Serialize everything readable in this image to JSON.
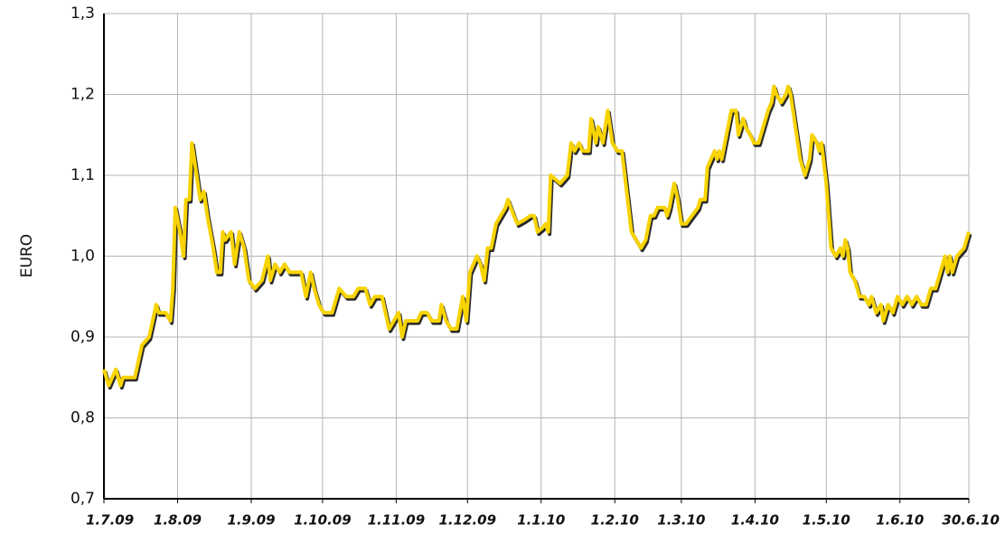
{
  "chart_data": {
    "type": "line",
    "y_label": "EURO",
    "x": [
      0,
      2,
      5,
      7,
      8,
      13,
      16,
      19,
      22,
      23,
      26,
      28,
      29,
      30,
      32,
      33.5,
      34.5,
      36,
      37,
      39,
      40.5,
      42,
      43.5,
      46,
      47.5,
      49,
      50,
      51,
      53.5,
      55,
      57,
      59,
      61,
      63.5,
      66.5,
      69,
      70,
      72,
      74,
      76,
      78,
      83,
      85,
      87,
      88.5,
      90.5,
      92.5,
      96,
      99,
      102,
      105,
      107,
      110,
      112,
      114,
      117,
      120,
      122,
      124,
      125.5,
      127,
      132,
      133.5,
      136,
      138,
      141,
      142,
      144,
      146,
      148.5,
      151,
      152.5,
      154,
      157,
      158.5,
      160,
      161.5,
      163,
      165,
      167,
      169,
      170,
      172.5,
      174,
      177,
      179.5,
      181,
      182.5,
      184.5,
      186,
      187,
      188,
      192,
      195,
      196.6,
      198,
      200,
      201.5,
      204,
      205,
      207,
      208,
      210,
      212,
      214,
      216,
      218,
      220,
      222,
      224,
      226,
      228,
      230,
      231.5,
      233,
      236,
      237,
      238,
      240,
      241.5,
      243,
      245,
      247.5,
      250,
      251,
      253,
      254,
      257,
      258,
      259,
      260,
      262,
      264,
      266,
      267,
      269,
      270,
      272,
      273.5,
      275.5,
      277.5,
      279.5,
      281,
      282,
      283,
      285,
      287,
      288,
      289,
      291,
      293,
      295,
      297,
      298,
      300,
      301,
      302,
      304,
      305,
      306,
      308,
      310,
      311,
      312,
      313,
      314,
      316,
      318,
      320,
      322,
      323,
      325,
      327,
      328,
      330,
      332,
      334,
      336,
      338,
      340,
      342,
      344,
      346,
      348,
      350,
      352,
      354,
      355,
      356,
      357,
      359,
      362,
      364
    ],
    "series": [
      {
        "name": "EURO",
        "color": "#f7d300",
        "values": [
          0.86,
          0.84,
          0.86,
          0.84,
          0.85,
          0.85,
          0.89,
          0.9,
          0.94,
          0.93,
          0.93,
          0.92,
          0.96,
          1.06,
          1.03,
          1.0,
          1.07,
          1.07,
          1.14,
          1.1,
          1.07,
          1.08,
          1.05,
          1.01,
          0.98,
          0.98,
          1.03,
          1.02,
          1.03,
          0.99,
          1.03,
          1.01,
          0.97,
          0.96,
          0.97,
          1.0,
          0.97,
          0.99,
          0.98,
          0.99,
          0.98,
          0.98,
          0.95,
          0.98,
          0.96,
          0.94,
          0.93,
          0.93,
          0.96,
          0.95,
          0.95,
          0.96,
          0.96,
          0.94,
          0.95,
          0.95,
          0.91,
          0.92,
          0.93,
          0.9,
          0.92,
          0.92,
          0.93,
          0.93,
          0.92,
          0.92,
          0.94,
          0.92,
          0.91,
          0.91,
          0.95,
          0.92,
          0.98,
          1.0,
          0.99,
          0.97,
          1.01,
          1.01,
          1.04,
          1.05,
          1.06,
          1.07,
          1.05,
          1.04,
          1.045,
          1.05,
          1.05,
          1.03,
          1.035,
          1.04,
          1.03,
          1.1,
          1.09,
          1.1,
          1.14,
          1.13,
          1.14,
          1.13,
          1.13,
          1.17,
          1.14,
          1.16,
          1.14,
          1.18,
          1.14,
          1.13,
          1.13,
          1.08,
          1.03,
          1.02,
          1.01,
          1.02,
          1.05,
          1.05,
          1.06,
          1.06,
          1.05,
          1.06,
          1.09,
          1.07,
          1.04,
          1.04,
          1.05,
          1.06,
          1.07,
          1.07,
          1.11,
          1.13,
          1.12,
          1.13,
          1.12,
          1.15,
          1.18,
          1.18,
          1.15,
          1.17,
          1.16,
          1.15,
          1.14,
          1.14,
          1.16,
          1.18,
          1.19,
          1.21,
          1.2,
          1.19,
          1.2,
          1.21,
          1.2,
          1.16,
          1.12,
          1.1,
          1.12,
          1.15,
          1.14,
          1.13,
          1.14,
          1.09,
          1.05,
          1.01,
          1.0,
          1.01,
          1.0,
          1.02,
          1.01,
          0.98,
          0.97,
          0.95,
          0.95,
          0.94,
          0.95,
          0.93,
          0.94,
          0.92,
          0.94,
          0.93,
          0.95,
          0.94,
          0.95,
          0.94,
          0.95,
          0.94,
          0.94,
          0.96,
          0.96,
          0.98,
          1.0,
          0.98,
          1.0,
          0.98,
          1.0,
          1.01,
          1.03
        ]
      }
    ],
    "xlim": [
      0,
      364
    ],
    "xticks": [
      {
        "value": 0,
        "label": "1.7.09"
      },
      {
        "value": 31,
        "label": "1.8.09"
      },
      {
        "value": 62,
        "label": "1.9.09"
      },
      {
        "value": 92,
        "label": "1.10.09"
      },
      {
        "value": 123,
        "label": "1.11.09"
      },
      {
        "value": 153,
        "label": "1.12.09"
      },
      {
        "value": 184,
        "label": "1.1.10"
      },
      {
        "value": 215,
        "label": "1.2.10"
      },
      {
        "value": 243,
        "label": "1.3.10"
      },
      {
        "value": 274,
        "label": "1.4.10"
      },
      {
        "value": 304,
        "label": "1.5.10"
      },
      {
        "value": 335,
        "label": "1.6.10"
      },
      {
        "value": 364,
        "label": "30.6.10"
      }
    ],
    "ylim": [
      0.7,
      1.3
    ],
    "yticks": [
      {
        "value": 0.7,
        "label": "0,7"
      },
      {
        "value": 0.8,
        "label": "0,8"
      },
      {
        "value": 0.9,
        "label": "0,9"
      },
      {
        "value": 1.0,
        "label": "1,0"
      },
      {
        "value": 1.1,
        "label": "1,1"
      },
      {
        "value": 1.2,
        "label": "1,2"
      },
      {
        "value": 1.3,
        "label": "1,3"
      }
    ],
    "grid": true
  }
}
